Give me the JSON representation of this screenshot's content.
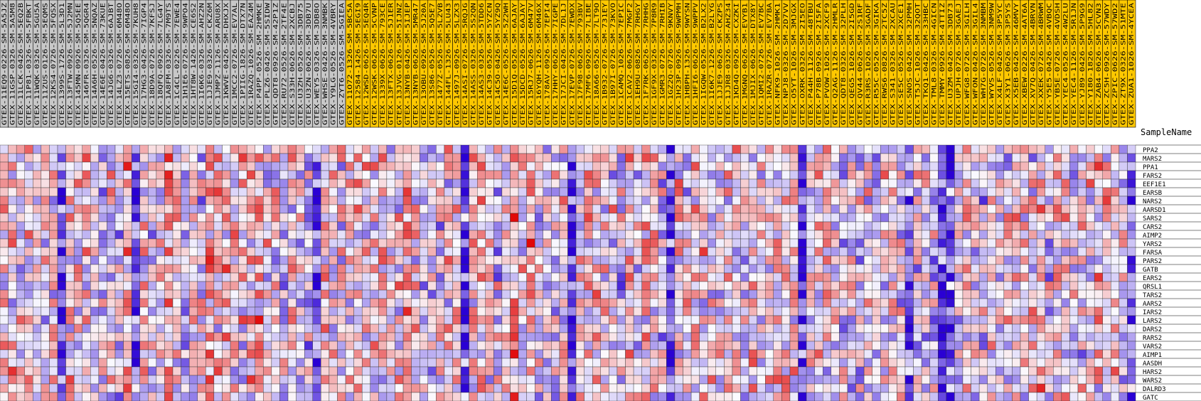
{
  "chart_data": {
    "type": "heatmap",
    "header_label": "SampleName",
    "group_colors": [
      "#c8c8c8",
      "#ffc800"
    ],
    "scale_colors": {
      "low": "#2a00d4",
      "mid": "#fbfbff",
      "high": "#e00000"
    },
    "samples": [
      {
        "name": "GTEX-11EQ9-0226-SM-5A5JZ",
        "group": 0
      },
      {
        "name": "GTEX-11GSP-0326-SM-5A5M8",
        "group": 0
      },
      {
        "name": "GTEX-11LCK-0426-SM-5EQ2B",
        "group": 0
      },
      {
        "name": "GTEX-11P81-0326-SM-5FBKT",
        "group": 0
      },
      {
        "name": "GTEX-11WQK-0326-SM-5GU5A",
        "group": 0
      },
      {
        "name": "GTEX-11ZUS-0126-SM-5EQMS",
        "group": 0
      },
      {
        "name": "GTEX-12KS4-0726-SM-5FQSX",
        "group": 0
      },
      {
        "name": "GTEX-1399S-1726-SM-5L3D1",
        "group": 0
      },
      {
        "name": "GTEX-13FTW-0926-SM-5J2MN",
        "group": 0
      },
      {
        "name": "GTEX-145MN-0926-SM-5Q5EE",
        "group": 0
      },
      {
        "name": "GTEX-146FR-0326-SM-5QGR4",
        "group": 0
      },
      {
        "name": "GTEX-14A6H-0526-SM-5NQAZ",
        "group": 0
      },
      {
        "name": "GTEX-14E6E-0426-SM-73KUE",
        "group": 0
      },
      {
        "name": "GTEX-14JG6-0326-SM-6AJBT",
        "group": 0
      },
      {
        "name": "GTEX-14LZ3-0726-SM-6M48O",
        "group": 0
      },
      {
        "name": "GTEX-15ETS-0826-SM-6M48O",
        "group": 0
      },
      {
        "name": "GTEX-15GI4-0326-SM-7KUH8",
        "group": 0
      },
      {
        "name": "GTEX-17HG3-0426-SM-7IGP4",
        "group": 0
      },
      {
        "name": "GTEX-18D9A-0726-SM-7KFSJ",
        "group": 0
      },
      {
        "name": "GTEX-18QFQ-0926-SM-7LG4Y",
        "group": 0
      },
      {
        "name": "GTEX-1A8FM-0326-SM-7M9TS",
        "group": 0
      },
      {
        "name": "GTEX-1C4CL-0226-SM-7EWE4",
        "group": 0
      },
      {
        "name": "GTEX-1H1E6-0726-SM-9WPO4",
        "group": 0
      },
      {
        "name": "GTEX-1HT8W-1426-SM-CE6S2",
        "group": 0
      },
      {
        "name": "GTEX-1I6K6-0326-SM-AHZ2N",
        "group": 0
      },
      {
        "name": "GTEX-1JJE9-0326-SM-CKZ6M",
        "group": 0
      },
      {
        "name": "GTEX-1JMPZ-1126-SM-ARU8X",
        "group": 0
      },
      {
        "name": "GTEX-1KWVE-0426-SM-DHXJX",
        "group": 0
      },
      {
        "name": "GTEX-1MCC2-0726-SM-EV7AL",
        "group": 0
      },
      {
        "name": "GTEX-1PIIG-1826-SM-DTX7N",
        "group": 0
      },
      {
        "name": "GTEX-1RAZQ-1026-SM-EAZ4M",
        "group": 0
      },
      {
        "name": "GTEX-P4PP-0526-SM-2HMKE",
        "group": 0
      },
      {
        "name": "GTEX-PLZ6-0426-SM-5SIDW",
        "group": 0
      },
      {
        "name": "GTEX-QDT8-0926-SM-42P1Z",
        "group": 0
      },
      {
        "name": "GTEX-RU72-0526-SM-2TF4E",
        "group": 0
      },
      {
        "name": "GTEX-S33H-0626-SM-2XCBJ",
        "group": 0
      },
      {
        "name": "GTEX-U3ZH-0526-SM-3DB75",
        "group": 0
      },
      {
        "name": "GTEX-U3ZN-0626-SM-3DB7U",
        "group": 0
      },
      {
        "name": "GTEX-WEY5-0326-SM-3DB8O",
        "group": 0
      },
      {
        "name": "GTEX-WHSE-0426-SM-3NMBK",
        "group": 0
      },
      {
        "name": "GTEX-Y9LG-0526-SM-4VBRY",
        "group": 0
      },
      {
        "name": "GTEX-ZYT6-0526-SM-5GIEA",
        "group": 0
      },
      {
        "name": "GTEX-11O72-1326-SM-5BC5A",
        "group": 1
      },
      {
        "name": "GTEX-12584-1426-SM-5EGI9",
        "group": 1
      },
      {
        "name": "GTEX-12WSD-0626-SM-5EQ4R",
        "group": 1
      },
      {
        "name": "GTEX-12WSK-0626-SM-5CVNP",
        "group": 1
      },
      {
        "name": "GTEX-1339X-0626-SM-793CE",
        "group": 1
      },
      {
        "name": "GTEX-13FTX-0626-SM-5J1ER",
        "group": 1
      },
      {
        "name": "GTEX-13JVG-0126-SM-5IJNZ",
        "group": 1
      },
      {
        "name": "GTEX-13NYB-0426-SM-5IJEP",
        "group": 1
      },
      {
        "name": "GTEX-13NYB-0626-SM-5MR47",
        "group": 1
      },
      {
        "name": "GTEX-13OBU-0926-SM-5J20A",
        "group": 1
      },
      {
        "name": "GTEX-13S86-0526-SM-5Q5E7",
        "group": 1
      },
      {
        "name": "GTEX-1477Z-0526-SM-5LZVB",
        "group": 1
      },
      {
        "name": "GTEX-144FL-1326-SM-5LU43",
        "group": 1
      },
      {
        "name": "GTEX-1497J-0926-SM-5LZX3",
        "group": 1
      },
      {
        "name": "GTEX-14ASI-0726-SM-5RQJG",
        "group": 1
      },
      {
        "name": "GTEX-14ASS-0326-SM-5S2QN",
        "group": 1
      },
      {
        "name": "GTEX-14AS3-0326-SM-5TDD6",
        "group": 1
      },
      {
        "name": "GTEX-14C39-0526-SM-5YZCN",
        "group": 1
      },
      {
        "name": "GTEX-14C5O-0426-SM-5YZ9Q",
        "group": 1
      },
      {
        "name": "GTEX-14E6C-0526-SM-5Z2WH",
        "group": 1
      },
      {
        "name": "GTEX-15D1Q-0526-SM-6AJAY",
        "group": 1
      },
      {
        "name": "GTEX-15DCD-0526-SM-6AJAY",
        "group": 1
      },
      {
        "name": "GTEX-15RJ7-0626-SM-6M47V",
        "group": 1
      },
      {
        "name": "GTEX-16YQH-1126-SM-6M46X",
        "group": 1
      },
      {
        "name": "GTEX-178AV-0926-SM-7EPI4",
        "group": 1
      },
      {
        "name": "GTEX-17HHY-0626-SM-7IGPE",
        "group": 1
      },
      {
        "name": "GTEX-17JCI-0426-SM-7DL1J",
        "group": 1
      },
      {
        "name": "GTEX-17EVP-0726-SM-7EWDX",
        "group": 1
      },
      {
        "name": "GTEX-17F98-0626-SM-793BV",
        "group": 1
      },
      {
        "name": "GTEX-17MF6-0926-SM-7LIBE",
        "group": 1
      },
      {
        "name": "GTEX-18A66-0526-SM-7LT9O",
        "group": 1
      },
      {
        "name": "GTEX-1B932-0726-SM-731EY",
        "group": 1
      },
      {
        "name": "GTEX-1B97I-0726-SM-73KVO",
        "group": 1
      },
      {
        "name": "GTEX-1CAMQ-1026-SM-7EPIC",
        "group": 1
      },
      {
        "name": "GTEX-1CAV2-0626-SM-7MGF2",
        "group": 1
      },
      {
        "name": "GTEX-1EH9U-0826-SM-7RHGY",
        "group": 1
      },
      {
        "name": "GTEX-1F7RK-0626-SM-7RHHG",
        "group": 1
      },
      {
        "name": "GTEX-1GF9X-0326-SM-7P8R9",
        "group": 1
      },
      {
        "name": "GTEX-1GMR3-0726-SM-7RHIB",
        "group": 1
      },
      {
        "name": "GTEX-1GZ2Q-0726-SM-9KNVY",
        "group": 1
      },
      {
        "name": "GTEX-1H23P-0926-SM-9WPMH",
        "group": 1
      },
      {
        "name": "GTEX-1HBPH-1326-SM-9WYSN",
        "group": 1
      },
      {
        "name": "GTEX-1HFI6-0626-SM-9WPPV",
        "group": 1
      },
      {
        "name": "GTEX-1IGQW-0526-SM-B2LX2",
        "group": 1
      },
      {
        "name": "GTEX-1I6K7-1226-SM-B2LYG",
        "group": 1
      },
      {
        "name": "GTEX-1JJE9-0626-SM-CKZPS",
        "group": 1
      },
      {
        "name": "GTEX-1JJR8-0326-SM-AHZ34",
        "group": 1
      },
      {
        "name": "GTEX-1KD4Q-0926-SM-CXZKI",
        "group": 1
      },
      {
        "name": "GTEX-1MGNQ-0626-SM-EVYB1",
        "group": 1
      },
      {
        "name": "GTEX-1MJIX-0626-SM-DTX8Y",
        "group": 1
      },
      {
        "name": "GTEX-1QMI2-0726-SM-EV7BC",
        "group": 1
      },
      {
        "name": "GTEX-1RAZR-0726-SM-EV7BA",
        "group": 1
      },
      {
        "name": "GTEX-NFK9-1026-SM-2HMK1",
        "group": 1
      },
      {
        "name": "GTEX-NPJ8-0326-SM-2D7VV",
        "group": 1
      },
      {
        "name": "GTEX-O5YT-1026-SM-3MJGX",
        "group": 1
      },
      {
        "name": "GTEX-OXRK-0326-SM-2I5EO",
        "group": 1
      },
      {
        "name": "GTEX-P44H-1126-SM-48TBU",
        "group": 1
      },
      {
        "name": "GTEX-P78B-0926-SM-2I5FA",
        "group": 1
      },
      {
        "name": "GTEX-PVOW-1026-SM-2XCF9",
        "group": 1
      },
      {
        "name": "GTEX-Q2AG-1126-SM-2HMLR",
        "group": 1
      },
      {
        "name": "GTEX-QDT8-0326-SM-32PLH",
        "group": 1
      },
      {
        "name": "GTEX-QEG5-1026-SM-2I5GD",
        "group": 1
      },
      {
        "name": "GTEX-QV44-0626-SM-2S1RF",
        "group": 1
      },
      {
        "name": "GTEX-R3RS-1026-SM-3GADF",
        "group": 1
      },
      {
        "name": "GTEX-R55C-0526-SM-3GIKA",
        "group": 1
      },
      {
        "name": "GTEX-RWS6-0826-SM-2TC5Z",
        "group": 1
      },
      {
        "name": "GTEX-S341-0326-SM-2XCAU",
        "group": 1
      },
      {
        "name": "GTEX-SE5C-0526-SM-2XCE1",
        "group": 1
      },
      {
        "name": "GTEX-SNOS-0426-SM-32PMH",
        "group": 1
      },
      {
        "name": "GTEX-T5JC-1026-SM-32QOT",
        "group": 1
      },
      {
        "name": "GTEX-TKQ1-0426-SM-33HBC",
        "group": 1
      },
      {
        "name": "GTEX-TML8-0326-SM-4GICN",
        "group": 1
      },
      {
        "name": "GTEX-TMMY-0926-SM-4TTIZ",
        "group": 1
      },
      {
        "name": "GTEX-U3ZM-0426-SM-3DB73",
        "group": 1
      },
      {
        "name": "GTEX-UPJH-0726-SM-3GAEJ",
        "group": 1
      },
      {
        "name": "GTEX-WFG8-0726-SM-3GILH",
        "group": 1
      },
      {
        "name": "GTEX-WFON-0426-SM-3GIL4",
        "group": 1
      },
      {
        "name": "GTEX-WH7G-0726-SM-3NMBM",
        "group": 1
      },
      {
        "name": "GTEX-WYVS-0526-SM-3NM9W",
        "group": 1
      },
      {
        "name": "GTEX-X4LF-0426-SM-3P5YC",
        "group": 1
      },
      {
        "name": "GTEX-X3Y1-0626-SM-3P5YS",
        "group": 1
      },
      {
        "name": "GTEX-X5EB-0426-SM-46MVY",
        "group": 1
      },
      {
        "name": "GTEX-XBEW-0226-SM-4AT6A",
        "group": 1
      },
      {
        "name": "GTEX-XV7Q-0426-SM-4BRVN",
        "group": 1
      },
      {
        "name": "GTEX-XXEK-0726-SM-4BRWM",
        "group": 1
      },
      {
        "name": "GTEX-Y5E5-0426-SM-4VBQC",
        "group": 1
      },
      {
        "name": "GTEX-YB5E-0726-SM-4VDSH",
        "group": 1
      },
      {
        "name": "GTEX-YEC4-0526-SM-4W2LU",
        "group": 1
      },
      {
        "name": "GTEX-YEC4-1126-SM-5R1JN",
        "group": 1
      },
      {
        "name": "GTEX-YJ89-0426-SM-5P9G9",
        "group": 1
      },
      {
        "name": "GTEX-Y180-1826-SM-5HL82",
        "group": 1
      },
      {
        "name": "GTEX-ZAB4-0626-SM-5CVN3",
        "group": 1
      },
      {
        "name": "GTEX-ZC5H-0926-SM-57WDY",
        "group": 1
      },
      {
        "name": "GTEX-ZPIC-0626-SM-57WD2",
        "group": 1
      },
      {
        "name": "GTEX-ZT9X-0326-SM-51MTE",
        "group": 1
      },
      {
        "name": "GTEX-ZUA1-1026-SM-4YCEA",
        "group": 1
      }
    ],
    "genes": [
      "PPA2",
      "MARS2",
      "PPA1",
      "FARS2",
      "EEF1E1",
      "EARSB",
      "NARS2",
      "AARSD1",
      "SARS2",
      "CARS2",
      "AIMP2",
      "YARS2",
      "FARSA",
      "PARS2",
      "GATB",
      "EARS2",
      "QRSL1",
      "TARS2",
      "AARS2",
      "IARS2",
      "LARS2",
      "DARS2",
      "RARS2",
      "VARS2",
      "AIMP1",
      "AASDH",
      "HARS2",
      "WARS2",
      "DALRD3",
      "GATC"
    ],
    "value_range": [
      -2,
      2
    ],
    "matrix": null
  }
}
